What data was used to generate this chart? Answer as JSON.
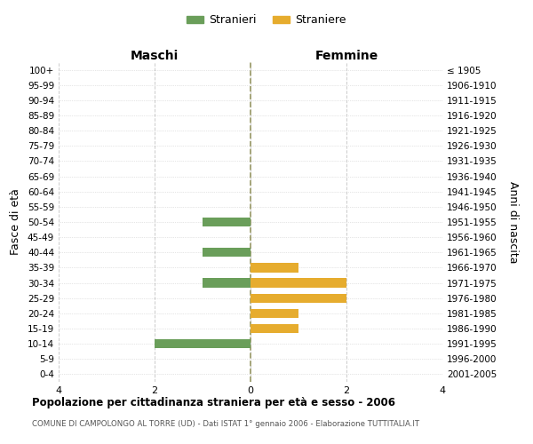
{
  "age_groups": [
    "100+",
    "95-99",
    "90-94",
    "85-89",
    "80-84",
    "75-79",
    "70-74",
    "65-69",
    "60-64",
    "55-59",
    "50-54",
    "45-49",
    "40-44",
    "35-39",
    "30-34",
    "25-29",
    "20-24",
    "15-19",
    "10-14",
    "5-9",
    "0-4"
  ],
  "birth_years": [
    "≤ 1905",
    "1906-1910",
    "1911-1915",
    "1916-1920",
    "1921-1925",
    "1926-1930",
    "1931-1935",
    "1936-1940",
    "1941-1945",
    "1946-1950",
    "1951-1955",
    "1956-1960",
    "1961-1965",
    "1966-1970",
    "1971-1975",
    "1976-1980",
    "1981-1985",
    "1986-1990",
    "1991-1995",
    "1996-2000",
    "2001-2005"
  ],
  "maschi": [
    0,
    0,
    0,
    0,
    0,
    0,
    0,
    0,
    0,
    0,
    1,
    0,
    1,
    0,
    1,
    0,
    0,
    0,
    2,
    0,
    0
  ],
  "femmine": [
    0,
    0,
    0,
    0,
    0,
    0,
    0,
    0,
    0,
    0,
    0,
    0,
    0,
    1,
    2,
    2,
    1,
    1,
    0,
    0,
    0
  ],
  "male_color": "#6a9e5a",
  "female_color": "#e6ac2e",
  "title": "Popolazione per cittadinanza straniera per età e sesso - 2006",
  "subtitle": "COMUNE DI CAMPOLONGO AL TORRE (UD) - Dati ISTAT 1° gennaio 2006 - Elaborazione TUTTITALIA.IT",
  "ylabel_left": "Fasce di età",
  "ylabel_right": "Anni di nascita",
  "xlabel_maschi": "Maschi",
  "xlabel_femmine": "Femmine",
  "legend_maschi": "Stranieri",
  "legend_femmine": "Straniere",
  "xlim": 4,
  "background_color": "#ffffff",
  "grid_color": "#cccccc"
}
